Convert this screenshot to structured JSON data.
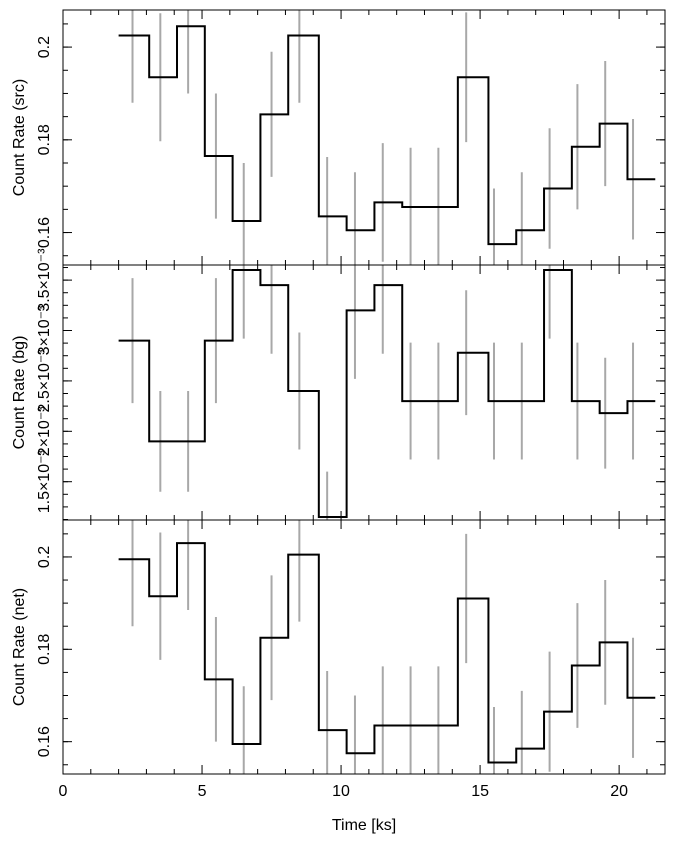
{
  "chart_data": [
    {
      "type": "line",
      "ylabel": "Count Rate (src)",
      "ylim": [
        0.153,
        0.208
      ],
      "yticks": [
        {
          "v": 0.16,
          "label": "0.16"
        },
        {
          "v": 0.18,
          "label": "0.18"
        },
        {
          "v": 0.2,
          "label": "0.2"
        }
      ],
      "bin_edges": [
        2.0,
        3.1,
        4.1,
        5.1,
        6.1,
        7.1,
        8.1,
        9.2,
        10.2,
        11.2,
        12.2,
        13.2,
        14.2,
        15.3,
        16.3,
        17.3,
        18.3,
        19.3,
        20.3,
        21.3
      ],
      "x": [
        2.5,
        3.5,
        4.5,
        5.5,
        6.5,
        7.5,
        8.5,
        9.5,
        10.5,
        11.5,
        12.5,
        13.5,
        14.5,
        15.5,
        16.5,
        17.5,
        18.5,
        19.5,
        20.5
      ],
      "values": [
        0.2025,
        0.1935,
        0.2045,
        0.1765,
        0.1625,
        0.1855,
        0.2025,
        0.1635,
        0.1605,
        0.1665,
        0.1655,
        0.1655,
        0.1935,
        0.1575,
        0.1605,
        0.1695,
        0.1785,
        0.1835,
        0.1715
      ],
      "err": [
        0.0145,
        0.0138,
        0.0145,
        0.0135,
        0.0125,
        0.0135,
        0.0145,
        0.0128,
        0.0125,
        0.0128,
        0.0128,
        0.0128,
        0.014,
        0.012,
        0.0125,
        0.013,
        0.0135,
        0.0135,
        0.013
      ]
    },
    {
      "type": "line",
      "ylabel": "Count Rate (bg)",
      "ylim": [
        0.00112,
        0.00365
      ],
      "yticks": [
        {
          "v": 0.0015,
          "label": "1.5×10⁻³"
        },
        {
          "v": 0.002,
          "label": "2×10⁻³"
        },
        {
          "v": 0.0025,
          "label": "2.5×10⁻³"
        },
        {
          "v": 0.003,
          "label": "3×10⁻³"
        },
        {
          "v": 0.0035,
          "label": "3.5×10⁻³"
        }
      ],
      "bin_edges": [
        2.0,
        3.1,
        4.1,
        5.1,
        6.1,
        7.1,
        8.1,
        9.2,
        10.2,
        11.2,
        12.2,
        13.2,
        14.2,
        15.3,
        16.3,
        17.3,
        18.3,
        19.3,
        20.3,
        21.3
      ],
      "x": [
        2.5,
        3.5,
        4.5,
        5.5,
        6.5,
        7.5,
        8.5,
        9.5,
        10.5,
        11.5,
        12.5,
        13.5,
        14.5,
        15.5,
        16.5,
        17.5,
        18.5,
        19.5,
        20.5
      ],
      "values": [
        0.0029,
        0.0019,
        0.0019,
        0.0029,
        0.0036,
        0.00345,
        0.0024,
        0.00115,
        0.0032,
        0.00345,
        0.0023,
        0.0023,
        0.00278,
        0.0023,
        0.0023,
        0.0036,
        0.0023,
        0.00218,
        0.0023
      ],
      "err": [
        0.00062,
        0.0005,
        0.0005,
        0.00062,
        0.00068,
        0.00068,
        0.00058,
        0.00045,
        0.00068,
        0.00068,
        0.00058,
        0.00058,
        0.00062,
        0.00058,
        0.00058,
        0.00068,
        0.00058,
        0.00055,
        0.00058
      ]
    },
    {
      "type": "line",
      "ylabel": "Count Rate (net)",
      "ylim": [
        0.153,
        0.208
      ],
      "yticks": [
        {
          "v": 0.16,
          "label": "0.16"
        },
        {
          "v": 0.18,
          "label": "0.18"
        },
        {
          "v": 0.2,
          "label": "0.2"
        }
      ],
      "xlabel": "Time [ks]",
      "xlim": [
        0,
        21.65
      ],
      "xticks": [
        {
          "v": 0,
          "label": "0"
        },
        {
          "v": 5,
          "label": "5"
        },
        {
          "v": 10,
          "label": "10"
        },
        {
          "v": 15,
          "label": "15"
        },
        {
          "v": 20,
          "label": "20"
        }
      ],
      "bin_edges": [
        2.0,
        3.1,
        4.1,
        5.1,
        6.1,
        7.1,
        8.1,
        9.2,
        10.2,
        11.2,
        12.2,
        13.2,
        14.2,
        15.3,
        16.3,
        17.3,
        18.3,
        19.3,
        20.3,
        21.3
      ],
      "x": [
        2.5,
        3.5,
        4.5,
        5.5,
        6.5,
        7.5,
        8.5,
        9.5,
        10.5,
        11.5,
        12.5,
        13.5,
        14.5,
        15.5,
        16.5,
        17.5,
        18.5,
        19.5,
        20.5
      ],
      "values": [
        0.1995,
        0.1915,
        0.203,
        0.1735,
        0.1595,
        0.1825,
        0.2005,
        0.1625,
        0.1575,
        0.1635,
        0.1635,
        0.1635,
        0.191,
        0.1555,
        0.1585,
        0.1665,
        0.1765,
        0.1815,
        0.1695
      ],
      "err": [
        0.0145,
        0.0138,
        0.0145,
        0.0135,
        0.0125,
        0.0135,
        0.0145,
        0.0128,
        0.0125,
        0.0128,
        0.0128,
        0.0128,
        0.014,
        0.012,
        0.0125,
        0.013,
        0.0135,
        0.0135,
        0.013
      ]
    }
  ]
}
